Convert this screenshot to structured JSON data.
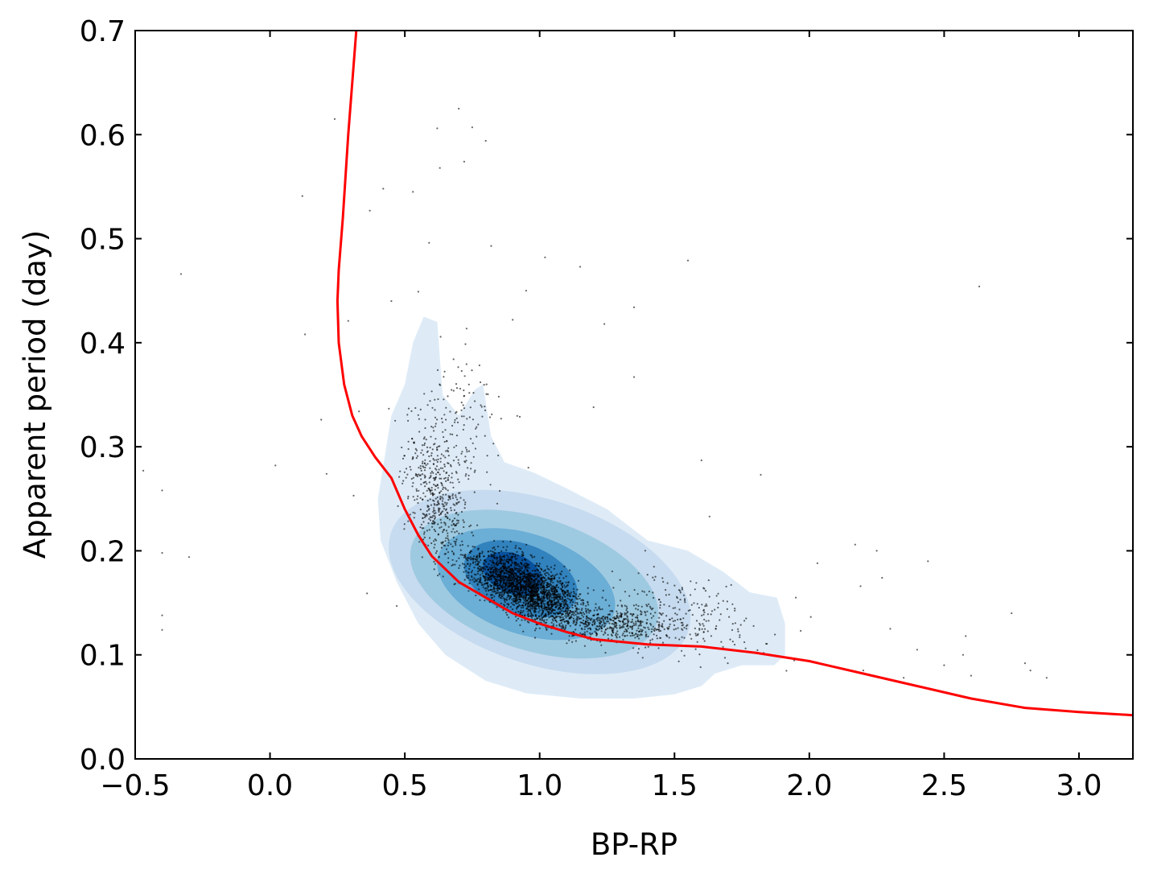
{
  "chart_data": {
    "type": "scatter",
    "xlabel": "BP-RP",
    "ylabel": "Apparent period (day)",
    "xlim": [
      -0.5,
      3.2
    ],
    "ylim": [
      0.0,
      0.7
    ],
    "x_ticks": [
      -0.5,
      0.0,
      0.5,
      1.0,
      1.5,
      2.0,
      2.5,
      3.0
    ],
    "x_tick_labels": [
      "−0.5",
      "0.0",
      "0.5",
      "1.0",
      "1.5",
      "2.0",
      "2.5",
      "3.0"
    ],
    "y_ticks": [
      0.0,
      0.1,
      0.2,
      0.3,
      0.4,
      0.5,
      0.6,
      0.7
    ],
    "y_tick_labels": [
      "0.0",
      "0.1",
      "0.2",
      "0.3",
      "0.4",
      "0.5",
      "0.6",
      "0.7"
    ],
    "grid": false,
    "colors": {
      "curve": "#ff0000",
      "points": "#000000",
      "density": [
        "#deebf7",
        "#c6dbef",
        "#9ecae1",
        "#6baed6",
        "#3182bd",
        "#08519c"
      ]
    },
    "density_center": [
      0.95,
      0.17
    ],
    "curve": {
      "x": [
        0.32,
        0.29,
        0.27,
        0.255,
        0.25,
        0.255,
        0.275,
        0.305,
        0.34,
        0.39,
        0.45,
        0.5,
        0.55,
        0.6,
        0.7,
        0.8,
        0.9,
        1.0,
        1.1,
        1.2,
        1.4,
        1.6,
        1.8,
        2.0,
        2.2,
        2.4,
        2.6,
        2.8,
        3.0,
        3.2
      ],
      "y": [
        0.7,
        0.6,
        0.52,
        0.47,
        0.44,
        0.4,
        0.36,
        0.33,
        0.31,
        0.29,
        0.27,
        0.24,
        0.215,
        0.195,
        0.17,
        0.155,
        0.14,
        0.13,
        0.122,
        0.115,
        0.11,
        0.108,
        0.102,
        0.094,
        0.082,
        0.07,
        0.058,
        0.049,
        0.045,
        0.042
      ]
    },
    "scatter_outliers": [
      [
        -0.47,
        0.277
      ],
      [
        -0.4,
        0.258
      ],
      [
        -0.4,
        0.198
      ],
      [
        -0.4,
        0.138
      ],
      [
        -0.4,
        0.124
      ],
      [
        -0.33,
        0.466
      ],
      [
        -0.3,
        0.194
      ],
      [
        0.02,
        0.282
      ],
      [
        0.12,
        0.541
      ],
      [
        0.13,
        0.408
      ],
      [
        0.19,
        0.326
      ],
      [
        0.21,
        0.274
      ],
      [
        0.24,
        0.615
      ],
      [
        0.29,
        0.421
      ],
      [
        0.31,
        0.253
      ],
      [
        0.33,
        0.334
      ],
      [
        0.36,
        0.159
      ],
      [
        0.37,
        0.527
      ],
      [
        0.42,
        0.548
      ],
      [
        0.45,
        0.44
      ],
      [
        0.47,
        0.147
      ],
      [
        0.53,
        0.545
      ],
      [
        0.55,
        0.449
      ],
      [
        0.59,
        0.496
      ],
      [
        0.62,
        0.606
      ],
      [
        0.63,
        0.568
      ],
      [
        0.7,
        0.625
      ],
      [
        0.72,
        0.574
      ],
      [
        0.75,
        0.607
      ],
      [
        0.8,
        0.594
      ],
      [
        0.82,
        0.493
      ],
      [
        0.9,
        0.422
      ],
      [
        0.95,
        0.45
      ],
      [
        1.02,
        0.482
      ],
      [
        1.15,
        0.473
      ],
      [
        1.24,
        0.418
      ],
      [
        1.35,
        0.434
      ],
      [
        1.35,
        0.367
      ],
      [
        1.2,
        0.338
      ],
      [
        1.55,
        0.479
      ],
      [
        1.6,
        0.287
      ],
      [
        1.63,
        0.233
      ],
      [
        1.82,
        0.273
      ],
      [
        1.95,
        0.155
      ],
      [
        2.03,
        0.188
      ],
      [
        2.17,
        0.206
      ],
      [
        2.19,
        0.166
      ],
      [
        2.25,
        0.2
      ],
      [
        2.27,
        0.174
      ],
      [
        2.2,
        0.085
      ],
      [
        2.3,
        0.125
      ],
      [
        2.44,
        0.19
      ],
      [
        2.5,
        0.09
      ],
      [
        2.58,
        0.118
      ],
      [
        2.63,
        0.454
      ],
      [
        2.6,
        0.08
      ],
      [
        2.75,
        0.14
      ],
      [
        2.8,
        0.092
      ],
      [
        2.82,
        0.085
      ],
      [
        2.88,
        0.078
      ],
      [
        2.57,
        0.1
      ],
      [
        2.4,
        0.105
      ],
      [
        2.35,
        0.078
      ]
    ]
  }
}
